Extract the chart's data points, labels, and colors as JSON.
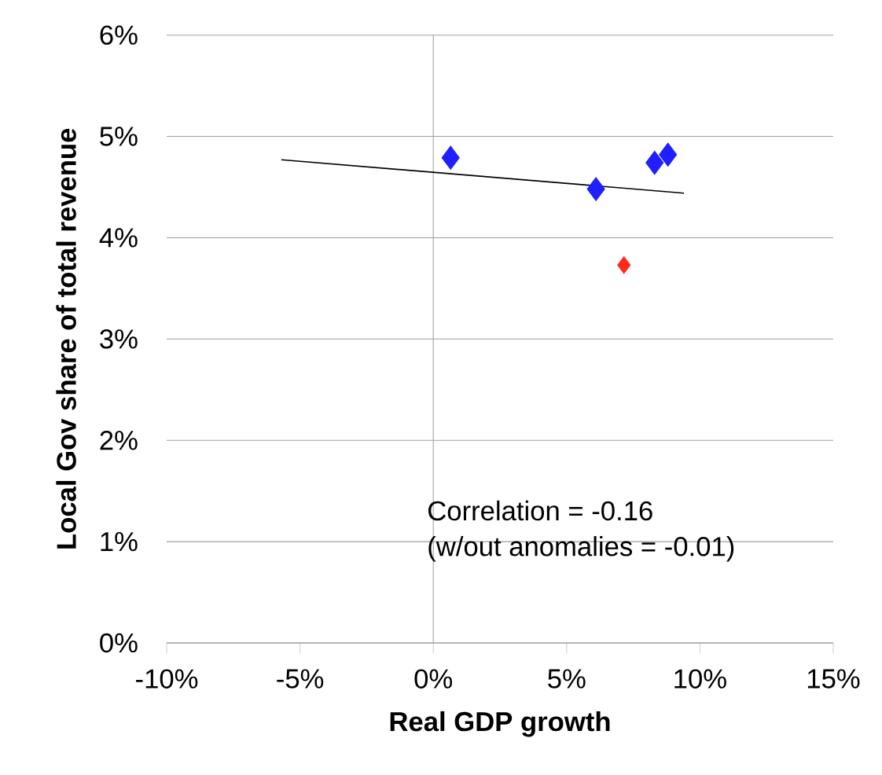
{
  "chart_data": {
    "type": "scatter",
    "xlabel": "Real GDP growth",
    "ylabel": "Local Gov share of total revenue",
    "xlim": [
      -10,
      15
    ],
    "ylim": [
      0,
      6
    ],
    "xticks": [
      {
        "value": -10,
        "label": "-10%"
      },
      {
        "value": -5,
        "label": "-5%"
      },
      {
        "value": 0,
        "label": "0%"
      },
      {
        "value": 5,
        "label": "5%"
      },
      {
        "value": 10,
        "label": "10%"
      },
      {
        "value": 15,
        "label": "15%"
      }
    ],
    "yticks": [
      {
        "value": 0,
        "label": "0%"
      },
      {
        "value": 1,
        "label": "1%"
      },
      {
        "value": 2,
        "label": "2%"
      },
      {
        "value": 3,
        "label": "3%"
      },
      {
        "value": 4,
        "label": "4%"
      },
      {
        "value": 5,
        "label": "5%"
      },
      {
        "value": 6,
        "label": "6%"
      }
    ],
    "grid": "y",
    "marker": "diamond",
    "series": [
      {
        "color": "#1f1fff",
        "x": [
          0.65,
          6.1,
          8.3,
          8.8
        ],
        "values": [
          4.79,
          4.48,
          4.74,
          4.82
        ]
      },
      {
        "color": "#ff2a1a",
        "x": [
          7.15
        ],
        "values": [
          3.73
        ]
      },
      {
        "type": "line",
        "color": "#000000",
        "marker": "none",
        "x": [
          -5.7,
          9.4
        ],
        "values": [
          4.77,
          4.44
        ]
      }
    ],
    "ref_lines": [
      {
        "axis": "x",
        "value": 0,
        "color": "#a0a0a0"
      }
    ],
    "annotations": [
      "Correlation = -0.16",
      "(w/out anomalies = -0.01)"
    ]
  }
}
